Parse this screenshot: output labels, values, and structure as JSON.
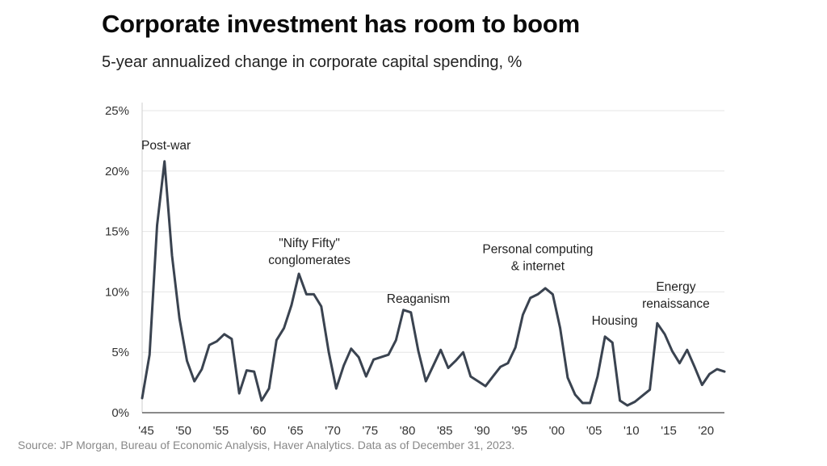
{
  "chart_data": {
    "type": "line",
    "title": "Corporate investment has room to boom",
    "subtitle": "5-year annualized change in corporate capital spending, %",
    "xlabel": "",
    "ylabel": "",
    "xlim": [
      1945,
      2023
    ],
    "ylim": [
      0,
      25
    ],
    "y_ticks": [
      {
        "value": 0,
        "label": "0%"
      },
      {
        "value": 5,
        "label": "5%"
      },
      {
        "value": 10,
        "label": "10%"
      },
      {
        "value": 15,
        "label": "15%"
      },
      {
        "value": 20,
        "label": "20%"
      },
      {
        "value": 25,
        "label": "25%"
      }
    ],
    "x_ticks": [
      {
        "value": 1945,
        "label": "'45"
      },
      {
        "value": 1950,
        "label": "'50"
      },
      {
        "value": 1955,
        "label": "'55"
      },
      {
        "value": 1960,
        "label": "'60"
      },
      {
        "value": 1965,
        "label": "'65"
      },
      {
        "value": 1970,
        "label": "'70"
      },
      {
        "value": 1975,
        "label": "'75"
      },
      {
        "value": 1980,
        "label": "'80"
      },
      {
        "value": 1985,
        "label": "'85"
      },
      {
        "value": 1990,
        "label": "'90"
      },
      {
        "value": 1995,
        "label": "'95"
      },
      {
        "value": 2000,
        "label": "'00"
      },
      {
        "value": 2005,
        "label": "'05"
      },
      {
        "value": 2010,
        "label": "'10"
      },
      {
        "value": 2015,
        "label": "'15"
      },
      {
        "value": 2020,
        "label": "'20"
      }
    ],
    "grid": "horizontal",
    "series": [
      {
        "color": "#3a4350",
        "points": [
          [
            1945,
            1.2
          ],
          [
            1946,
            4.8
          ],
          [
            1947,
            15.5
          ],
          [
            1948,
            20.8
          ],
          [
            1949,
            13.0
          ],
          [
            1950,
            7.8
          ],
          [
            1951,
            4.3
          ],
          [
            1952,
            2.6
          ],
          [
            1953,
            3.6
          ],
          [
            1954,
            5.6
          ],
          [
            1955,
            5.9
          ],
          [
            1956,
            6.5
          ],
          [
            1957,
            6.1
          ],
          [
            1958,
            1.6
          ],
          [
            1959,
            3.5
          ],
          [
            1960,
            3.4
          ],
          [
            1961,
            1.0
          ],
          [
            1962,
            2.0
          ],
          [
            1963,
            6.0
          ],
          [
            1964,
            7.0
          ],
          [
            1965,
            8.9
          ],
          [
            1966,
            11.5
          ],
          [
            1967,
            9.8
          ],
          [
            1968,
            9.8
          ],
          [
            1969,
            8.8
          ],
          [
            1970,
            5.0
          ],
          [
            1971,
            2.0
          ],
          [
            1972,
            3.9
          ],
          [
            1973,
            5.3
          ],
          [
            1974,
            4.6
          ],
          [
            1975,
            3.0
          ],
          [
            1976,
            4.4
          ],
          [
            1977,
            4.6
          ],
          [
            1978,
            4.8
          ],
          [
            1979,
            6.0
          ],
          [
            1980,
            8.5
          ],
          [
            1981,
            8.3
          ],
          [
            1982,
            5.1
          ],
          [
            1983,
            2.6
          ],
          [
            1984,
            3.9
          ],
          [
            1985,
            5.2
          ],
          [
            1986,
            3.7
          ],
          [
            1987,
            4.3
          ],
          [
            1988,
            5.0
          ],
          [
            1989,
            3.0
          ],
          [
            1990,
            2.6
          ],
          [
            1991,
            2.2
          ],
          [
            1992,
            3.0
          ],
          [
            1993,
            3.8
          ],
          [
            1994,
            4.1
          ],
          [
            1995,
            5.4
          ],
          [
            1996,
            8.1
          ],
          [
            1997,
            9.5
          ],
          [
            1998,
            9.8
          ],
          [
            1999,
            10.3
          ],
          [
            2000,
            9.8
          ],
          [
            2001,
            7.0
          ],
          [
            2002,
            2.9
          ],
          [
            2003,
            1.5
          ],
          [
            2004,
            0.8
          ],
          [
            2005,
            0.8
          ],
          [
            2006,
            3.0
          ],
          [
            2007,
            6.3
          ],
          [
            2008,
            5.8
          ],
          [
            2009,
            1.0
          ],
          [
            2010,
            0.6
          ],
          [
            2011,
            0.9
          ],
          [
            2012,
            1.4
          ],
          [
            2013,
            1.9
          ],
          [
            2014,
            7.4
          ],
          [
            2015,
            6.5
          ],
          [
            2016,
            5.1
          ],
          [
            2017,
            4.1
          ],
          [
            2018,
            5.2
          ],
          [
            2019,
            3.8
          ],
          [
            2020,
            2.3
          ],
          [
            2021,
            3.2
          ],
          [
            2022,
            3.6
          ],
          [
            2023,
            3.4
          ]
        ]
      }
    ],
    "annotations": [
      {
        "lines": [
          "Post-war"
        ],
        "x": 1948.2,
        "y": 21.8
      },
      {
        "lines": [
          "\"Nifty Fifty\"",
          "conglomerates"
        ],
        "x": 1967.4,
        "y": 12.3
      },
      {
        "lines": [
          "Reaganism"
        ],
        "x": 1982.0,
        "y": 9.1
      },
      {
        "lines": [
          "Personal computing",
          "& internet"
        ],
        "x": 1998.0,
        "y": 11.8
      },
      {
        "lines": [
          "Housing"
        ],
        "x": 2008.3,
        "y": 7.3
      },
      {
        "lines": [
          "Energy",
          "renaissance"
        ],
        "x": 2016.5,
        "y": 8.7
      }
    ]
  },
  "source": "Source: JP Morgan, Bureau of Economic Analysis, Haver Analytics. Data as of December 31, 2023."
}
